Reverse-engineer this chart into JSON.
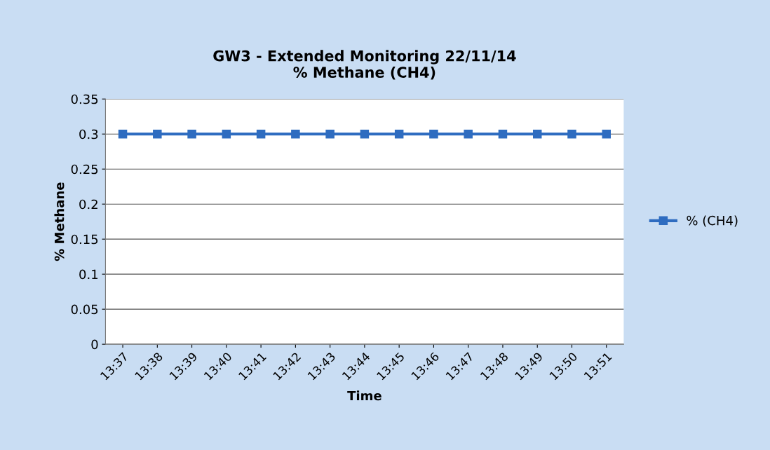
{
  "chart_data": {
    "type": "line",
    "title": "GW3 - Extended Monitoring 22/11/14\n% Methane (CH4)",
    "xlabel": "Time",
    "ylabel": "% Methane",
    "categories": [
      "13:37",
      "13:38",
      "13:39",
      "13:40",
      "13:41",
      "13:42",
      "13:43",
      "13:44",
      "13:45",
      "13:46",
      "13:47",
      "13:48",
      "13:49",
      "13:50",
      "13:51"
    ],
    "series": [
      {
        "name": "% (CH4)",
        "color": "#2e6cc0",
        "values": [
          0.3,
          0.3,
          0.3,
          0.3,
          0.3,
          0.3,
          0.3,
          0.3,
          0.3,
          0.3,
          0.3,
          0.3,
          0.3,
          0.3,
          0.3
        ]
      }
    ],
    "ylim": [
      0,
      0.35
    ],
    "yticks": [
      0,
      0.05,
      0.1,
      0.15,
      0.2,
      0.25,
      0.3,
      0.35
    ],
    "grid": "y",
    "legend": "right",
    "marker": "square",
    "line_style": "solid"
  }
}
